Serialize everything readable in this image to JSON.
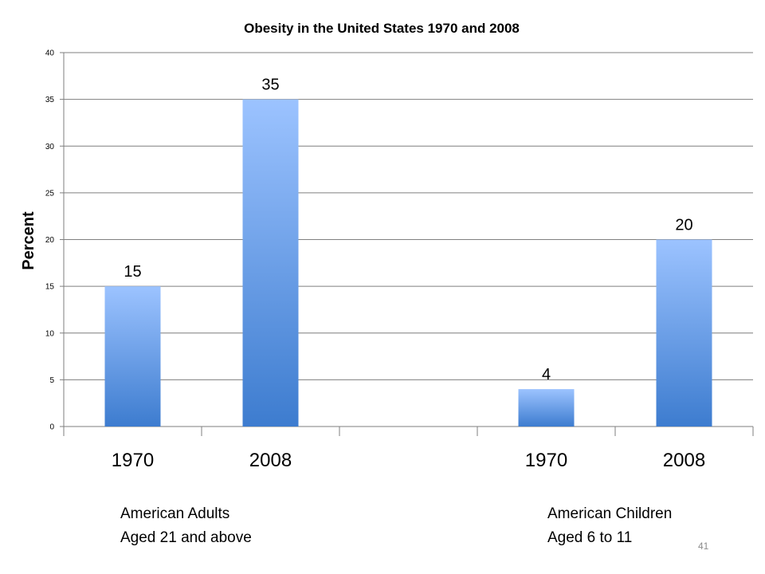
{
  "slide": {
    "page_number": "41"
  },
  "groups": [
    {
      "line1": "American Adults",
      "line2": "Aged 21 and above"
    },
    {
      "line1": "American Children",
      "line2": "Aged 6 to 11"
    }
  ],
  "colors": {
    "bar_top": "#9cc3ff",
    "bar_bottom": "#3d7ccf",
    "grid": "#7f7f7f",
    "axis": "#7f7f7f"
  },
  "chart_data": {
    "type": "bar",
    "title": "Obesity in the United States 1970 and 2008",
    "xlabel": "",
    "ylabel": "Percent",
    "ylim": [
      0,
      40
    ],
    "yticks": [
      0,
      5,
      10,
      15,
      20,
      25,
      30,
      35,
      40
    ],
    "grid": true,
    "categories": [
      "1970",
      "2008",
      "",
      "1970",
      "2008"
    ],
    "values": [
      15,
      35,
      null,
      4,
      20
    ],
    "data_labels": [
      "15",
      "35",
      "",
      "4",
      "20"
    ]
  }
}
